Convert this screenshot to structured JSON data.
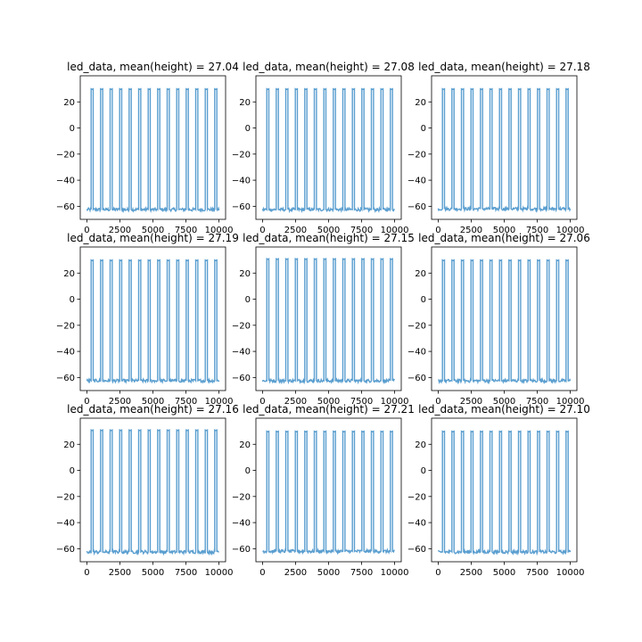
{
  "figure": {
    "background": "#ffffff",
    "line_color": "#5b9fd0",
    "rows": 3,
    "cols": 3
  },
  "chart_data": [
    {
      "type": "line",
      "title": "led_data, mean(height) = 27.04",
      "xlim": [
        -500,
        10500
      ],
      "ylim": [
        -70,
        40
      ],
      "x_ticks": [
        0,
        2500,
        5000,
        7500,
        10000
      ],
      "x_tick_labels": [
        "0",
        "2500",
        "5000",
        "7500",
        "10000"
      ],
      "y_ticks": [
        20,
        0,
        -20,
        -40,
        -60
      ],
      "y_tick_labels": [
        "20",
        "0",
        "−20",
        "−40",
        "−60"
      ],
      "pulse_period": 720,
      "first_pulse_x": 320,
      "pulse_width": 160,
      "pulse_count": 14,
      "baseline": -62.5,
      "peak": 30,
      "grid": false
    },
    {
      "type": "line",
      "title": "led_data, mean(height) = 27.08",
      "xlim": [
        -500,
        10500
      ],
      "ylim": [
        -70,
        40
      ],
      "x_ticks": [
        0,
        2500,
        5000,
        7500,
        10000
      ],
      "x_tick_labels": [
        "0",
        "2500",
        "5000",
        "7500",
        "10000"
      ],
      "y_ticks": [
        20,
        0,
        -20,
        -40,
        -60
      ],
      "y_tick_labels": [
        "20",
        "0",
        "−20",
        "−40",
        "−60"
      ],
      "pulse_period": 720,
      "first_pulse_x": 320,
      "pulse_width": 160,
      "pulse_count": 14,
      "baseline": -62.5,
      "peak": 30,
      "grid": false
    },
    {
      "type": "line",
      "title": "led_data, mean(height) = 27.18",
      "xlim": [
        -500,
        10500
      ],
      "ylim": [
        -70,
        40
      ],
      "x_ticks": [
        0,
        2500,
        5000,
        7500,
        10000
      ],
      "x_tick_labels": [
        "0",
        "2500",
        "5000",
        "7500",
        "10000"
      ],
      "y_ticks": [
        20,
        0,
        -20,
        -40,
        -60
      ],
      "y_tick_labels": [
        "20",
        "0",
        "−20",
        "−40",
        "−60"
      ],
      "pulse_period": 720,
      "first_pulse_x": 320,
      "pulse_width": 160,
      "pulse_count": 14,
      "baseline": -62,
      "peak": 30,
      "grid": false
    },
    {
      "type": "line",
      "title": "led_data, mean(height) = 27.19",
      "xlim": [
        -500,
        10500
      ],
      "ylim": [
        -70,
        40
      ],
      "x_ticks": [
        0,
        2500,
        5000,
        7500,
        10000
      ],
      "x_tick_labels": [
        "0",
        "2500",
        "5000",
        "7500",
        "10000"
      ],
      "y_ticks": [
        20,
        0,
        -20,
        -40,
        -60
      ],
      "y_tick_labels": [
        "20",
        "0",
        "−20",
        "−40",
        "−60"
      ],
      "pulse_period": 720,
      "first_pulse_x": 320,
      "pulse_width": 160,
      "pulse_count": 14,
      "baseline": -62.5,
      "peak": 30,
      "grid": false
    },
    {
      "type": "line",
      "title": "led_data, mean(height) = 27.15",
      "xlim": [
        -500,
        10500
      ],
      "ylim": [
        -70,
        40
      ],
      "x_ticks": [
        0,
        2500,
        5000,
        7500,
        10000
      ],
      "x_tick_labels": [
        "0",
        "2500",
        "5000",
        "7500",
        "10000"
      ],
      "y_ticks": [
        20,
        0,
        -20,
        -40,
        -60
      ],
      "y_tick_labels": [
        "20",
        "0",
        "−20",
        "−40",
        "−60"
      ],
      "pulse_period": 720,
      "first_pulse_x": 320,
      "pulse_width": 160,
      "pulse_count": 14,
      "baseline": -62.5,
      "peak": 31,
      "grid": false
    },
    {
      "type": "line",
      "title": "led_data, mean(height) = 27.06",
      "xlim": [
        -500,
        10500
      ],
      "ylim": [
        -70,
        40
      ],
      "x_ticks": [
        0,
        2500,
        5000,
        7500,
        10000
      ],
      "x_tick_labels": [
        "0",
        "2500",
        "5000",
        "7500",
        "10000"
      ],
      "y_ticks": [
        20,
        0,
        -20,
        -40,
        -60
      ],
      "y_tick_labels": [
        "20",
        "0",
        "−20",
        "−40",
        "−60"
      ],
      "pulse_period": 720,
      "first_pulse_x": 320,
      "pulse_width": 160,
      "pulse_count": 14,
      "baseline": -62.5,
      "peak": 30,
      "grid": false
    },
    {
      "type": "line",
      "title": "led_data, mean(height) = 27.16",
      "xlim": [
        -500,
        10500
      ],
      "ylim": [
        -70,
        40
      ],
      "x_ticks": [
        0,
        2500,
        5000,
        7500,
        10000
      ],
      "x_tick_labels": [
        "0",
        "2500",
        "5000",
        "7500",
        "10000"
      ],
      "y_ticks": [
        20,
        0,
        -20,
        -40,
        -60
      ],
      "y_tick_labels": [
        "20",
        "0",
        "−20",
        "−40",
        "−60"
      ],
      "pulse_period": 720,
      "first_pulse_x": 320,
      "pulse_width": 160,
      "pulse_count": 14,
      "baseline": -62.5,
      "peak": 31,
      "grid": false
    },
    {
      "type": "line",
      "title": "led_data, mean(height) = 27.21",
      "xlim": [
        -500,
        10500
      ],
      "ylim": [
        -70,
        40
      ],
      "x_ticks": [
        0,
        2500,
        5000,
        7500,
        10000
      ],
      "x_tick_labels": [
        "0",
        "2500",
        "5000",
        "7500",
        "10000"
      ],
      "y_ticks": [
        20,
        0,
        -20,
        -40,
        -60
      ],
      "y_tick_labels": [
        "20",
        "0",
        "−20",
        "−40",
        "−60"
      ],
      "pulse_period": 720,
      "first_pulse_x": 320,
      "pulse_width": 160,
      "pulse_count": 14,
      "baseline": -62,
      "peak": 30,
      "grid": false
    },
    {
      "type": "line",
      "title": "led_data, mean(height) = 27.10",
      "xlim": [
        -500,
        10500
      ],
      "ylim": [
        -70,
        40
      ],
      "x_ticks": [
        0,
        2500,
        5000,
        7500,
        10000
      ],
      "x_tick_labels": [
        "0",
        "2500",
        "5000",
        "7500",
        "10000"
      ],
      "y_ticks": [
        20,
        0,
        -20,
        -40,
        -60
      ],
      "y_tick_labels": [
        "20",
        "0",
        "−20",
        "−40",
        "−60"
      ],
      "pulse_period": 720,
      "first_pulse_x": 320,
      "pulse_width": 160,
      "pulse_count": 14,
      "baseline": -62.5,
      "peak": 30,
      "grid": false
    }
  ]
}
